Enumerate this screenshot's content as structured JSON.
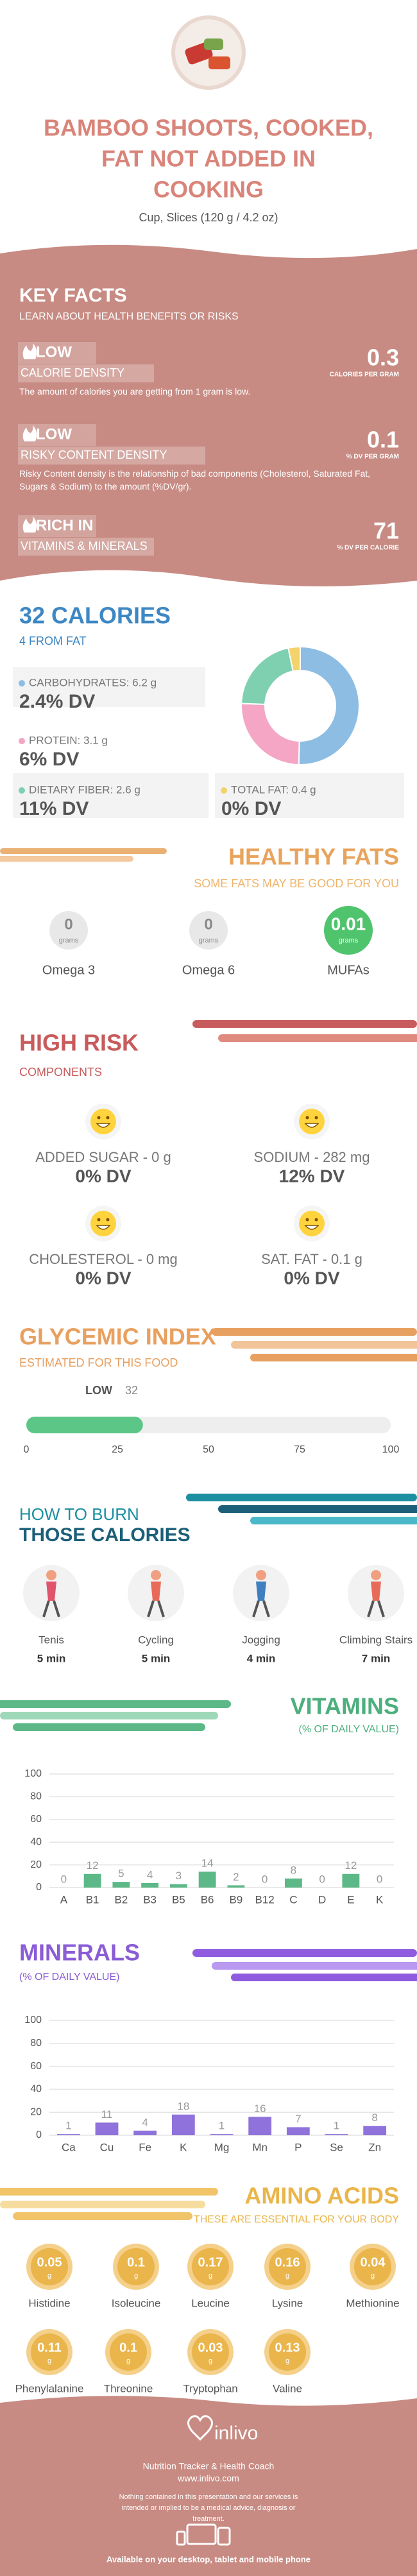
{
  "header": {
    "title_lines": [
      "BAMBOO SHOOTS, COOKED,",
      "FAT NOT ADDED IN",
      "COOKING"
    ],
    "serving": "Cup, Slices (120 g / 4.2 oz)"
  },
  "key_facts": {
    "title": "KEY FACTS",
    "subtitle": "LEARN ABOUT HEALTH BENEFITS OR RISKS",
    "items": [
      {
        "level": "LOW",
        "name": "CALORIE DENSITY",
        "description": "The amount of calories you are getting from 1 gram is low.",
        "value": 0.3,
        "unit": "CALORIES PER GRAM"
      },
      {
        "level": "LOW",
        "name": "RISKY CONTENT DENSITY",
        "description": "Risky Content density is the relationship of bad components (Cholesterol, Saturated Fat, Sugars & Sodium) to the amount (%DV/gr).",
        "value": 0.1,
        "unit": "% DV PER GRAM"
      },
      {
        "level": "RICH  IN",
        "name": "VITAMINS & MINERALS",
        "value": 71,
        "unit": "% DV PER CALORIE"
      }
    ]
  },
  "calories": {
    "title": "32 CALORIES",
    "subtitle": "4 FROM FAT",
    "nutrients": [
      {
        "label": "CARBOHYDRATES: 6.2 g",
        "dv": "2.4% DV",
        "grams": 6.2,
        "color": "#8dbde3"
      },
      {
        "label": "PROTEIN: 3.1 g",
        "dv": "6% DV",
        "grams": 3.1,
        "color": "#f4a6c4"
      },
      {
        "label": "DIETARY FIBER: 2.6 g",
        "dv": "11% DV",
        "grams": 2.6,
        "color": "#7fd0b0"
      },
      {
        "label": "TOTAL FAT: 0.4 g",
        "dv": "0% DV",
        "grams": 0.4,
        "color": "#f3d36b"
      }
    ]
  },
  "healthy_fats": {
    "title": "HEALTHY FATS",
    "subtitle": "SOME FATS MAY BE GOOD FOR YOU",
    "unit": "grams",
    "items": [
      {
        "name": "Omega 3",
        "value": 0
      },
      {
        "name": "Omega 6",
        "value": 0
      },
      {
        "name": "MUFAs",
        "value": 0.01
      }
    ]
  },
  "high_risk": {
    "title": "HIGH RISK",
    "subtitle": "COMPONENTS",
    "items": [
      {
        "label": "ADDED SUGAR - 0 g",
        "dv": "0% DV"
      },
      {
        "label": "SODIUM - 282 mg",
        "dv": "12% DV"
      },
      {
        "label": "CHOLESTEROL - 0 mg",
        "dv": "0% DV"
      },
      {
        "label": "SAT. FAT - 0.1 g",
        "dv": "0% DV"
      }
    ]
  },
  "glycemic_index": {
    "title": "GLYCEMIC INDEX",
    "subtitle": "ESTIMATED FOR THIS FOOD",
    "level": "LOW",
    "value": 32,
    "xlim": [
      0,
      100
    ],
    "xticks": [
      0,
      25,
      50,
      75,
      100
    ]
  },
  "burn": {
    "title_lines": [
      "HOW TO BURN",
      "THOSE CALORIES"
    ],
    "activities": [
      {
        "name": "Tenis",
        "time": "5 min"
      },
      {
        "name": "Cycling",
        "time": "5 min"
      },
      {
        "name": "Jogging",
        "time": "4 min"
      },
      {
        "name": "Climbing Stairs",
        "time": "7 min"
      }
    ]
  },
  "vitamins": {
    "type": "bar",
    "title": "VITAMINS",
    "subtitle": "(% OF DAILY VALUE)",
    "categories": [
      "A",
      "B1",
      "B2",
      "B3",
      "B5",
      "B6",
      "B9",
      "B12",
      "C",
      "D",
      "E",
      "K"
    ],
    "values": [
      0,
      12,
      5,
      4,
      3,
      14,
      2,
      0,
      8,
      0,
      12,
      0
    ],
    "color": "#5cb887",
    "ylim": [
      0,
      100
    ],
    "yticks": [
      0,
      20,
      40,
      60,
      80,
      100
    ],
    "grid": true
  },
  "minerals": {
    "type": "bar",
    "title": "MINERALS",
    "subtitle": "(% OF DAILY VALUE)",
    "categories": [
      "Ca",
      "Cu",
      "Fe",
      "K",
      "Mg",
      "Mn",
      "P",
      "Se",
      "Zn"
    ],
    "values": [
      1,
      11,
      4,
      18,
      1,
      16,
      7,
      1,
      8
    ],
    "color": "#8f72db",
    "ylim": [
      0,
      100
    ],
    "yticks": [
      0,
      20,
      40,
      60,
      80,
      100
    ],
    "grid": true
  },
  "amino_acids": {
    "title": "AMINO ACIDS",
    "subtitle": "THESE ARE ESSENTIAL FOR YOUR BODY",
    "unit": "g",
    "items": [
      {
        "name": "Histidine",
        "value": 0.05
      },
      {
        "name": "Isoleucine",
        "value": 0.1
      },
      {
        "name": "Leucine",
        "value": 0.17
      },
      {
        "name": "Lysine",
        "value": 0.16
      },
      {
        "name": "Methionine",
        "value": 0.04
      },
      {
        "name": "Phenylalanine",
        "value": 0.11
      },
      {
        "name": "Threonine",
        "value": 0.1
      },
      {
        "name": "Tryptophan",
        "value": 0.03
      },
      {
        "name": "Valine",
        "value": 0.13
      }
    ]
  },
  "footer": {
    "brand": "inlivo",
    "tagline": "Nutrition Tracker & Health Coach",
    "url": "www.inlivo.com",
    "disclaimer": "Nothing contained in this presentation and our services is intended or implied to be a medical advice, diagnosis or treatment.",
    "availability": "Available on your desktop, tablet and mobile phone"
  }
}
